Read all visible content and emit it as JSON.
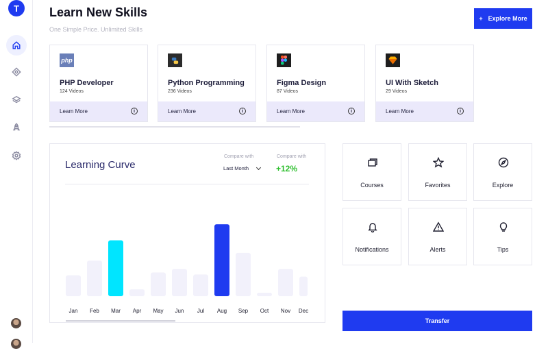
{
  "app": {
    "logo_letter": "T"
  },
  "header": {
    "title": "Learn New Skills",
    "subtitle": "One Simple Price. Unlimited Skills",
    "explore_label": "Explore More",
    "explore_plus": "+"
  },
  "sidebar": {
    "items": [
      {
        "icon": "home-icon"
      },
      {
        "icon": "compass-diamond-icon"
      },
      {
        "icon": "layers-icon"
      },
      {
        "icon": "rocket-icon"
      },
      {
        "icon": "settings-icon"
      }
    ]
  },
  "courses": [
    {
      "name": "PHP Developer",
      "count": "124 Videos",
      "icon_text": "php",
      "icon_bg": "#6a7fb8",
      "action": "Learn More"
    },
    {
      "name": "Python Programming",
      "count": "236 Videos",
      "icon_text": "",
      "icon_bg": "#2b2b2b",
      "action": "Learn More"
    },
    {
      "name": "Figma Design",
      "count": "87 Videos",
      "icon_text": "",
      "icon_bg": "#1e1e1e",
      "action": "Learn More"
    },
    {
      "name": "UI With Sketch",
      "count": "29 Videos",
      "icon_text": "",
      "icon_bg": "#1e1e1e",
      "action": "Learn More"
    }
  ],
  "chart_header": {
    "title": "Learning Curve",
    "compare_label_1": "Compare with",
    "compare_label_2": "Compare with",
    "period": "Last Month",
    "change": "+12%"
  },
  "chart_data": {
    "type": "bar",
    "categories": [
      "Jan",
      "Feb",
      "Mar",
      "Apr",
      "May",
      "Jun",
      "Jul",
      "Aug",
      "Sep",
      "Oct",
      "Nov",
      "Dec"
    ],
    "values": [
      30,
      51,
      80,
      10,
      34,
      39,
      31,
      103,
      62,
      5,
      39,
      28
    ],
    "highlight": {
      "Mar": "#00e5ff",
      "Aug": "#1f3bf0"
    },
    "base_color": "#f2f1fb",
    "ylim": [
      0,
      110
    ]
  },
  "tiles": [
    {
      "label": "Courses",
      "icon": "copy-icon"
    },
    {
      "label": "Favorites",
      "icon": "star-icon"
    },
    {
      "label": "Explore",
      "icon": "compass-icon"
    },
    {
      "label": "Notifications",
      "icon": "bell-icon"
    },
    {
      "label": "Alerts",
      "icon": "alert-triangle-icon"
    },
    {
      "label": "Tips",
      "icon": "lightbulb-icon"
    }
  ],
  "transfer_label": "Transfer",
  "colors": {
    "accent": "#1f3bf0",
    "positive": "#2fbf2f",
    "card_footer": "#ebe9fb"
  }
}
